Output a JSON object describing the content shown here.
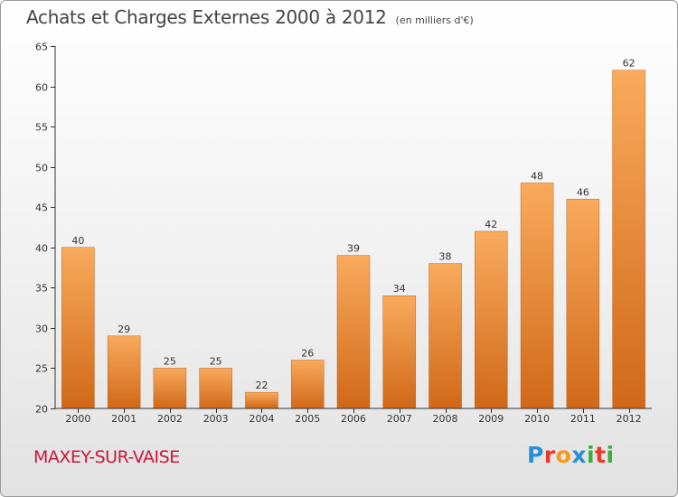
{
  "header": {
    "title": "Achats et Charges Externes 2000 à 2012",
    "unit": "(en milliers d'€)"
  },
  "footer": {
    "commune": "MAXEY-SUR-VAISE",
    "logo_text": "Proxiti",
    "logo_colors": [
      "#2a8fd6",
      "#e8392b",
      "#f39a1e",
      "#2a8fd6",
      "#3aae3a",
      "#e8392b",
      "#3aae3a"
    ]
  },
  "colors": {
    "bar_light": "#f9aa5c",
    "bar_dark": "#d06818",
    "axis": "#333333",
    "grid": "#dddddd",
    "commune": "#c8183c"
  },
  "chart_data": {
    "type": "bar",
    "categories": [
      "2000",
      "2001",
      "2002",
      "2003",
      "2004",
      "2005",
      "2006",
      "2007",
      "2008",
      "2009",
      "2010",
      "2011",
      "2012"
    ],
    "values": [
      40,
      29,
      25,
      25,
      22,
      26,
      39,
      34,
      38,
      42,
      48,
      46,
      62
    ],
    "ylim": [
      20,
      65
    ],
    "yticks": [
      20,
      25,
      30,
      35,
      40,
      45,
      50,
      55,
      60,
      65
    ],
    "grid": false
  }
}
